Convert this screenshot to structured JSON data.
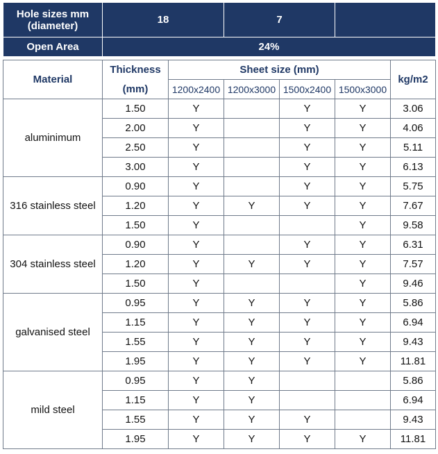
{
  "header": {
    "hole_label": "Hole sizes mm (diameter)",
    "hole_values": [
      "18",
      "7",
      ""
    ],
    "open_label": "Open Area",
    "open_value": "24%"
  },
  "columns": {
    "material": "Material",
    "thickness_1": "Thickness",
    "thickness_2": "(mm)",
    "sheet_size": "Sheet size (mm)",
    "sizes": [
      "1200x2400",
      "1200x3000",
      "1500x2400",
      "1500x3000"
    ],
    "weight": "kg/m2"
  },
  "groups": [
    {
      "material": "aluminimum",
      "rows": [
        {
          "t": "1.50",
          "s": [
            "Y",
            "",
            "Y",
            "Y"
          ],
          "kg": "3.06"
        },
        {
          "t": "2.00",
          "s": [
            "Y",
            "",
            "Y",
            "Y"
          ],
          "kg": "4.06"
        },
        {
          "t": "2.50",
          "s": [
            "Y",
            "",
            "Y",
            "Y"
          ],
          "kg": "5.11"
        },
        {
          "t": "3.00",
          "s": [
            "Y",
            "",
            "Y",
            "Y"
          ],
          "kg": "6.13"
        }
      ]
    },
    {
      "material": "316 stainless steel",
      "rows": [
        {
          "t": "0.90",
          "s": [
            "Y",
            "",
            "Y",
            "Y"
          ],
          "kg": "5.75"
        },
        {
          "t": "1.20",
          "s": [
            "Y",
            "Y",
            "Y",
            "Y"
          ],
          "kg": "7.67"
        },
        {
          "t": "1.50",
          "s": [
            "Y",
            "",
            "",
            "Y"
          ],
          "kg": "9.58"
        }
      ]
    },
    {
      "material": "304 stainless steel",
      "rows": [
        {
          "t": "0.90",
          "s": [
            "Y",
            "",
            "Y",
            "Y"
          ],
          "kg": "6.31"
        },
        {
          "t": "1.20",
          "s": [
            "Y",
            "Y",
            "Y",
            "Y"
          ],
          "kg": "7.57"
        },
        {
          "t": "1.50",
          "s": [
            "Y",
            "",
            "",
            "Y"
          ],
          "kg": "9.46"
        }
      ]
    },
    {
      "material": "galvanised steel",
      "rows": [
        {
          "t": "0.95",
          "s": [
            "Y",
            "Y",
            "Y",
            "Y"
          ],
          "kg": "5.86"
        },
        {
          "t": "1.15",
          "s": [
            "Y",
            "Y",
            "Y",
            "Y"
          ],
          "kg": "6.94"
        },
        {
          "t": "1.55",
          "s": [
            "Y",
            "Y",
            "Y",
            "Y"
          ],
          "kg": "9.43"
        },
        {
          "t": "1.95",
          "s": [
            "Y",
            "Y",
            "Y",
            "Y"
          ],
          "kg": "11.81"
        }
      ]
    },
    {
      "material": "mild steel",
      "rows": [
        {
          "t": "0.95",
          "s": [
            "Y",
            "Y",
            "",
            ""
          ],
          "kg": "5.86"
        },
        {
          "t": "1.15",
          "s": [
            "Y",
            "Y",
            "",
            ""
          ],
          "kg": "6.94"
        },
        {
          "t": "1.55",
          "s": [
            "Y",
            "Y",
            "Y",
            ""
          ],
          "kg": "9.43"
        },
        {
          "t": "1.95",
          "s": [
            "Y",
            "Y",
            "Y",
            "Y"
          ],
          "kg": "11.81"
        }
      ]
    }
  ]
}
